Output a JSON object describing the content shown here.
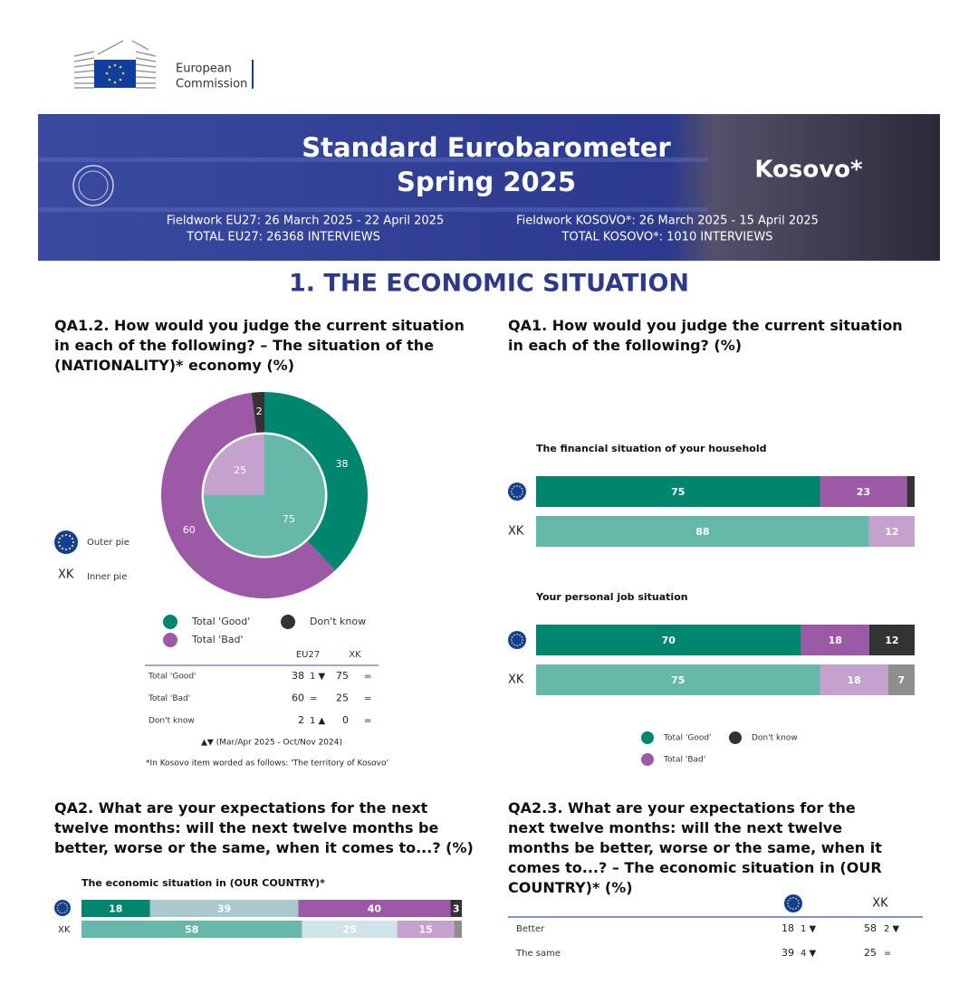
{
  "logo": {
    "line1": "European",
    "line2": "Commission"
  },
  "banner": {
    "title_line1": "Standard Eurobarometer",
    "title_line2": "Spring 2025",
    "country": "Kosovo*",
    "fieldwork_eu": "Fieldwork EU27: 26 March 2025 - 22 April 2025",
    "total_eu": "TOTAL EU27: 26368 INTERVIEWS",
    "fieldwork_xk": "Fieldwork KOSOVO*: 26 March 2025 - 15 April 2025",
    "total_xk": "TOTAL KOSOVO*: 1010 INTERVIEWS"
  },
  "section_title": "1. THE ECONOMIC SITUATION",
  "qa1_2": {
    "question": "QA1.2. How would you judge the current situation in each of the following? – The situation of the (NATIONALITY)* economy (%)",
    "type": "pie",
    "categories": [
      "Total 'Good'",
      "Total 'Bad'",
      "Don't know"
    ],
    "outer": {
      "label": "Outer pie",
      "values": [
        38,
        60,
        2
      ],
      "colors": [
        "#00866e",
        "#9c5aa6",
        "#333333"
      ]
    },
    "inner": {
      "code": "XK",
      "label": "Inner pie",
      "values": [
        75,
        25,
        0
      ],
      "colors": [
        "#66b8a8",
        "#c4a2cd",
        "#8e8e8e"
      ]
    },
    "table": {
      "columns": [
        "EU27",
        "XK"
      ],
      "rows": [
        {
          "label": "Total 'Good'",
          "eu27": 38,
          "eu27_change": "1 ▼",
          "xk": 75,
          "xk_change": "="
        },
        {
          "label": "Total 'Bad'",
          "eu27": 60,
          "eu27_change": "=",
          "xk": 25,
          "xk_change": "="
        },
        {
          "label": "Don't know",
          "eu27": 2,
          "eu27_change": "1 ▲",
          "xk": 0,
          "xk_change": "="
        }
      ]
    },
    "notes": [
      "▲▼ (Mar/Apr 2025 - Oct/Nov 2024)",
      "*In Kosovo item worded as follows: 'The territory of Kosovo'"
    ]
  },
  "qa1": {
    "question": "QA1. How would you judge the current situation in each of the following? (%)",
    "type": "bar",
    "xlim": [
      0,
      100
    ],
    "xk_label": "XK",
    "categories": [
      "Total 'Good'",
      "Total 'Bad'",
      "Don't know"
    ],
    "colors_eu": [
      "#00866e",
      "#9c5aa6",
      "#333333"
    ],
    "colors_xk": [
      "#66b8a8",
      "#c4a2cd",
      "#8e8e8e"
    ],
    "items": [
      {
        "title": "The financial situation of your household",
        "eu": [
          75,
          23,
          2
        ],
        "xk": [
          88,
          12,
          0
        ]
      },
      {
        "title": "Your personal job situation",
        "eu": [
          70,
          18,
          12
        ],
        "xk": [
          75,
          18,
          7
        ]
      }
    ]
  },
  "qa2": {
    "question": "QA2. What are your expectations for the next twelve months: will the next twelve months be better, worse or the same, when it comes to...? (%)",
    "type": "bar",
    "xlim": [
      0,
      100
    ],
    "xk_label": "XK",
    "item_title": "The economic situation in (OUR COUNTRY)*",
    "colors_eu": [
      "#00866e",
      "#a9c9cf",
      "#9c5aa6",
      "#333333"
    ],
    "colors_xk": [
      "#66b8a8",
      "#cfe4e8",
      "#c4a2cd",
      "#8e8e8e"
    ],
    "eu": [
      18,
      39,
      40,
      3
    ],
    "xk": [
      58,
      25,
      15,
      2
    ]
  },
  "qa2_3": {
    "question": "QA2.3. What are your expectations for the next twelve months: will the next twelve months be better, worse or the same, when it comes to...? – The economic situation in (OUR COUNTRY)* (%)",
    "columns": [
      "XK"
    ],
    "rows": [
      {
        "label": "Better",
        "eu": 18,
        "eu_change": "1 ▼",
        "xk": 58,
        "xk_change": "2 ▼"
      },
      {
        "label": "The same",
        "eu": 39,
        "eu_change": "4 ▼",
        "xk": 25,
        "xk_change": "="
      }
    ]
  }
}
